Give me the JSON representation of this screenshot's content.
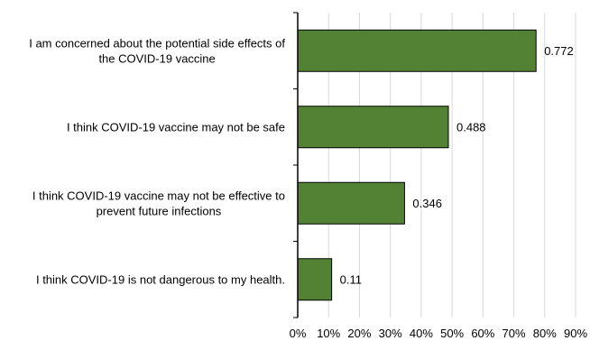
{
  "chart_data": {
    "type": "bar",
    "orientation": "horizontal",
    "categories": [
      [
        "I am concerned about the potential side effects of",
        "the COVID-19 vaccine"
      ],
      [
        "I think COVID-19 vaccine may not be safe"
      ],
      [
        "I think COVID-19 vaccine may not be effective to",
        "prevent future infections"
      ],
      [
        "I think COVID-19 is not dangerous to my health."
      ]
    ],
    "values": [
      0.772,
      0.488,
      0.346,
      0.11
    ],
    "data_labels": [
      "0.772",
      "0.488",
      "0.346",
      "0.11"
    ],
    "xlim": [
      0,
      0.9
    ],
    "x_ticks": [
      0,
      0.1,
      0.2,
      0.3,
      0.4,
      0.5,
      0.6,
      0.7,
      0.8,
      0.9
    ],
    "x_tick_labels": [
      "0%",
      "10%",
      "20%",
      "30%",
      "40%",
      "50%",
      "60%",
      "70%",
      "80%",
      "90%"
    ],
    "grid": "vertical",
    "bar_color": "#548235",
    "bar_edge_color": "#000000",
    "grid_color": "#d9d9d9",
    "title": "",
    "xlabel": "",
    "ylabel": ""
  }
}
